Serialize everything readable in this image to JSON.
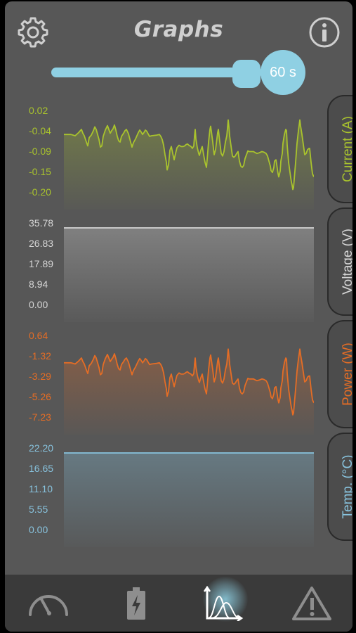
{
  "header": {
    "title": "Graphs"
  },
  "slider": {
    "label": "60 s",
    "fraction": 1.0
  },
  "colors": {
    "current": "#a9c32d",
    "voltage": "#d6d6d6",
    "power": "#e56d25",
    "temp": "#88c3de",
    "accent": "#8fd0e3"
  },
  "graphs": [
    {
      "id": "current",
      "label": "Current (A)",
      "ticks": [
        "0.02",
        "-0.04",
        "-0.09",
        "-0.15",
        "-0.20"
      ]
    },
    {
      "id": "voltage",
      "label": "Voltage (V)",
      "ticks": [
        "35.78",
        "26.83",
        "17.89",
        "8.94",
        "0.00"
      ]
    },
    {
      "id": "power",
      "label": "Power (W)",
      "ticks": [
        "0.64",
        "-1.32",
        "-3.29",
        "-5.26",
        "-7.23"
      ]
    },
    {
      "id": "temp",
      "label": "Temp. (°C)",
      "ticks": [
        "22.20",
        "16.65",
        "11.10",
        "5.55",
        "0.00"
      ]
    }
  ],
  "navbar": {
    "items": [
      "speedometer-icon",
      "battery-icon",
      "graphs-icon",
      "warning-icon"
    ],
    "active": 2
  }
}
